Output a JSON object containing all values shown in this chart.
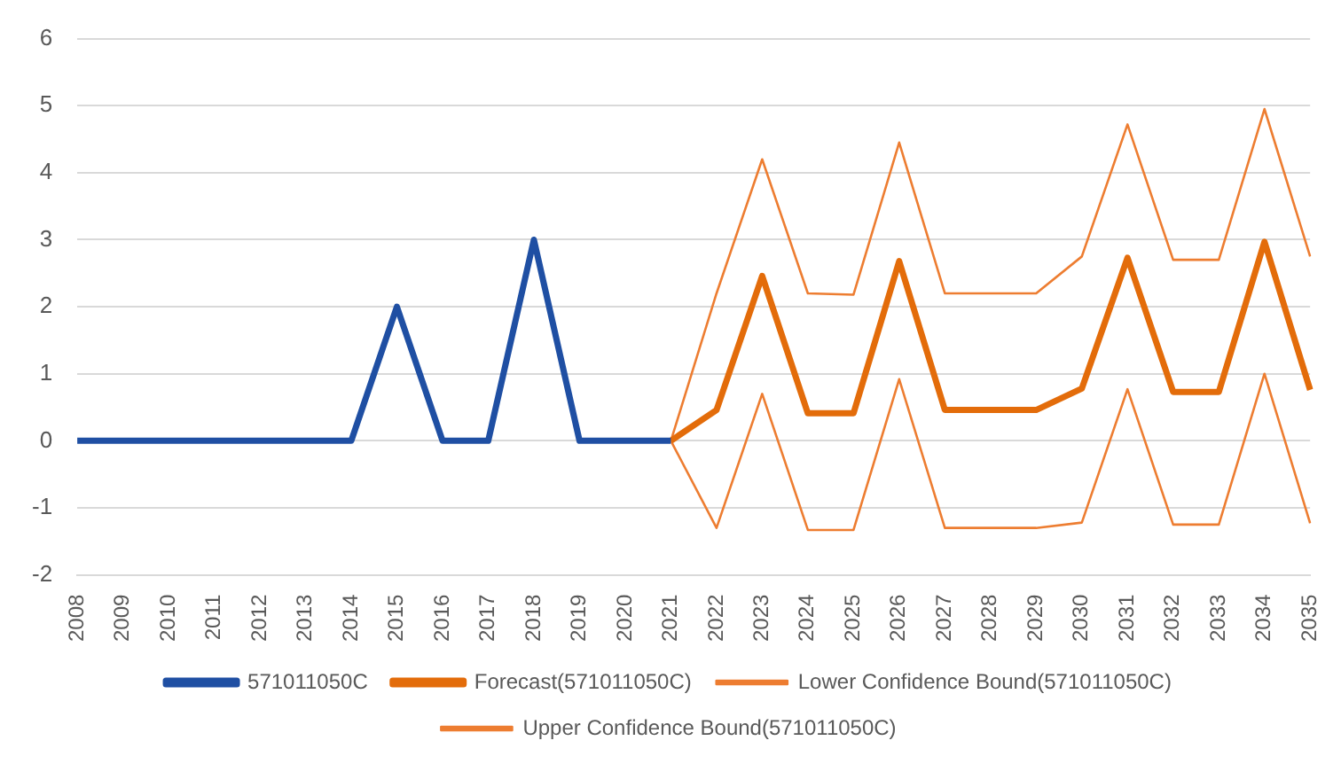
{
  "chart_data": {
    "type": "line",
    "categories": [
      "2008",
      "2009",
      "2010",
      "2011",
      "2012",
      "2013",
      "2014",
      "2015",
      "2016",
      "2017",
      "2018",
      "2019",
      "2020",
      "2021",
      "2022",
      "2023",
      "2024",
      "2025",
      "2026",
      "2027",
      "2028",
      "2029",
      "2030",
      "2031",
      "2032",
      "2033",
      "2034",
      "2035"
    ],
    "series": [
      {
        "name": "571011050C",
        "color": "#1f4fa3",
        "values": [
          0,
          0,
          0,
          0,
          0,
          0,
          0,
          2,
          0,
          0,
          3,
          0,
          0,
          0,
          null,
          null,
          null,
          null,
          null,
          null,
          null,
          null,
          null,
          null,
          null,
          null,
          null,
          null
        ]
      },
      {
        "name": "Forecast(571011050C)",
        "color": "#e36c0a",
        "values": [
          null,
          null,
          null,
          null,
          null,
          null,
          null,
          null,
          null,
          null,
          null,
          null,
          null,
          0,
          0.46,
          2.46,
          0.41,
          0.41,
          2.68,
          0.46,
          0.46,
          0.46,
          0.78,
          2.73,
          0.73,
          0.73,
          2.97,
          0.76
        ]
      },
      {
        "name": "Lower Confidence Bound(571011050C)",
        "color": "#ed7d31",
        "values": [
          null,
          null,
          null,
          null,
          null,
          null,
          null,
          null,
          null,
          null,
          null,
          null,
          null,
          0,
          -1.3,
          0.7,
          -1.33,
          -1.33,
          0.92,
          -1.3,
          -1.3,
          -1.3,
          -1.22,
          0.77,
          -1.25,
          -1.25,
          1.0,
          -1.23
        ]
      },
      {
        "name": "Upper Confidence Bound(571011050C)",
        "color": "#ed7d31",
        "values": [
          null,
          null,
          null,
          null,
          null,
          null,
          null,
          null,
          null,
          null,
          null,
          null,
          null,
          0,
          2.2,
          4.2,
          2.2,
          2.18,
          4.45,
          2.2,
          2.2,
          2.2,
          2.75,
          4.72,
          2.7,
          2.7,
          4.95,
          2.75
        ]
      }
    ],
    "ylim": [
      -2,
      6
    ],
    "yticks": [
      -2,
      -1,
      0,
      1,
      2,
      3,
      4,
      5,
      6
    ],
    "grid": "y",
    "legend": "bottom",
    "marker": "none",
    "line_style": "solid"
  }
}
